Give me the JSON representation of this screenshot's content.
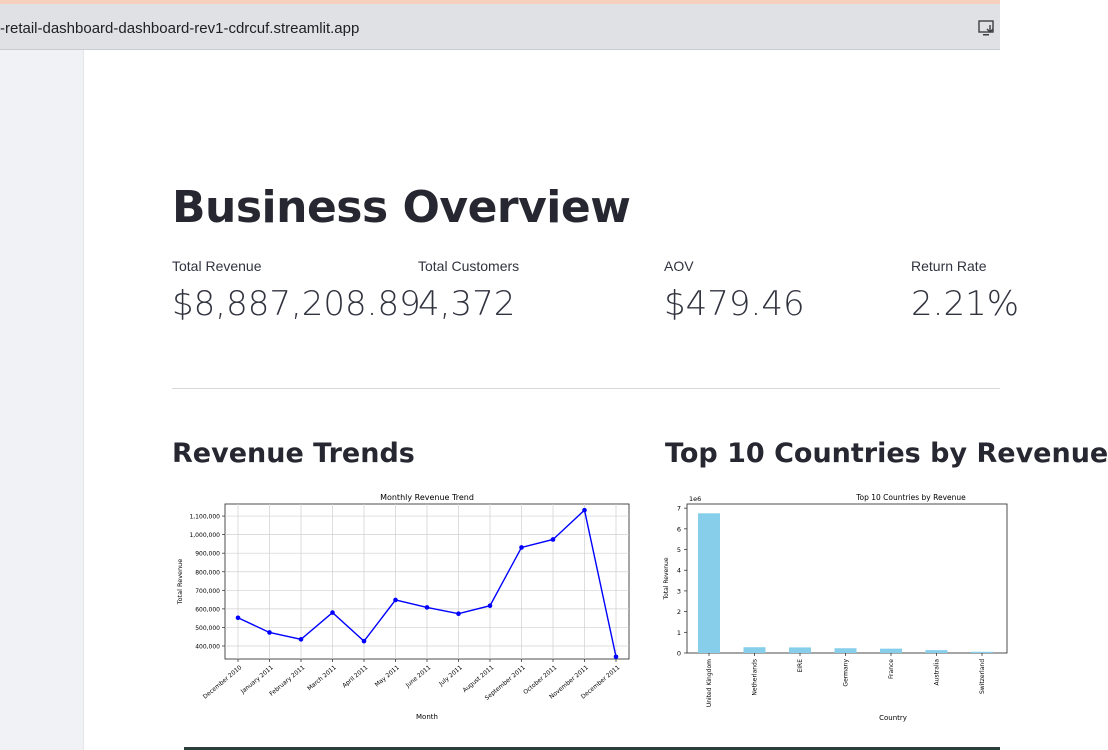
{
  "browser": {
    "url": "-retail-dashboard-dashboard-rev1-cdrcuf.streamlit.app",
    "download_icon": "download-icon"
  },
  "page": {
    "title": "Business Overview",
    "metrics": [
      {
        "label": "Total Revenue",
        "value": "$8,887,208.89"
      },
      {
        "label": "Total Customers",
        "value": "4,372"
      },
      {
        "label": "AOV",
        "value": "$479.46"
      },
      {
        "label": "Return Rate",
        "value": "2.21%"
      }
    ],
    "section_left": "Revenue Trends",
    "section_right": "Top 10 Countries by Revenue"
  },
  "chart_data": [
    {
      "type": "line",
      "title": "Monthly Revenue Trend",
      "xlabel": "Month",
      "ylabel": "Total Revenue",
      "categories": [
        "December 2010",
        "January 2011",
        "February 2011",
        "March 2011",
        "April 2011",
        "May 2011",
        "June 2011",
        "July 2011",
        "August 2011",
        "September 2011",
        "October 2011",
        "November 2011",
        "December 2011"
      ],
      "values": [
        552000,
        473000,
        436000,
        580000,
        426000,
        648000,
        608000,
        574000,
        617000,
        931000,
        974000,
        1132000,
        342000
      ],
      "yticks": [
        400000,
        500000,
        600000,
        700000,
        800000,
        900000,
        1000000,
        1100000
      ],
      "ytick_labels": [
        "400,000",
        "500,000",
        "600,000",
        "700,000",
        "800,000",
        "900,000",
        "1,000,000",
        "1,100,000"
      ],
      "ylim": [
        330000,
        1165000
      ],
      "grid": true,
      "color": "#0000ff"
    },
    {
      "type": "bar",
      "title": "Top 10 Countries by Revenue",
      "xlabel": "Country",
      "ylabel": "Total Revenue",
      "offset_label": "1e6",
      "categories": [
        "United Kingdom",
        "Netherlands",
        "EIRE",
        "Germany",
        "France",
        "Australia",
        "Switzerland"
      ],
      "values": [
        6.75,
        0.28,
        0.27,
        0.23,
        0.21,
        0.14,
        0.06
      ],
      "yticks": [
        0,
        1,
        2,
        3,
        4,
        5,
        6,
        7
      ],
      "ylim": [
        0,
        7.2
      ],
      "color": "#87ceeb"
    }
  ]
}
